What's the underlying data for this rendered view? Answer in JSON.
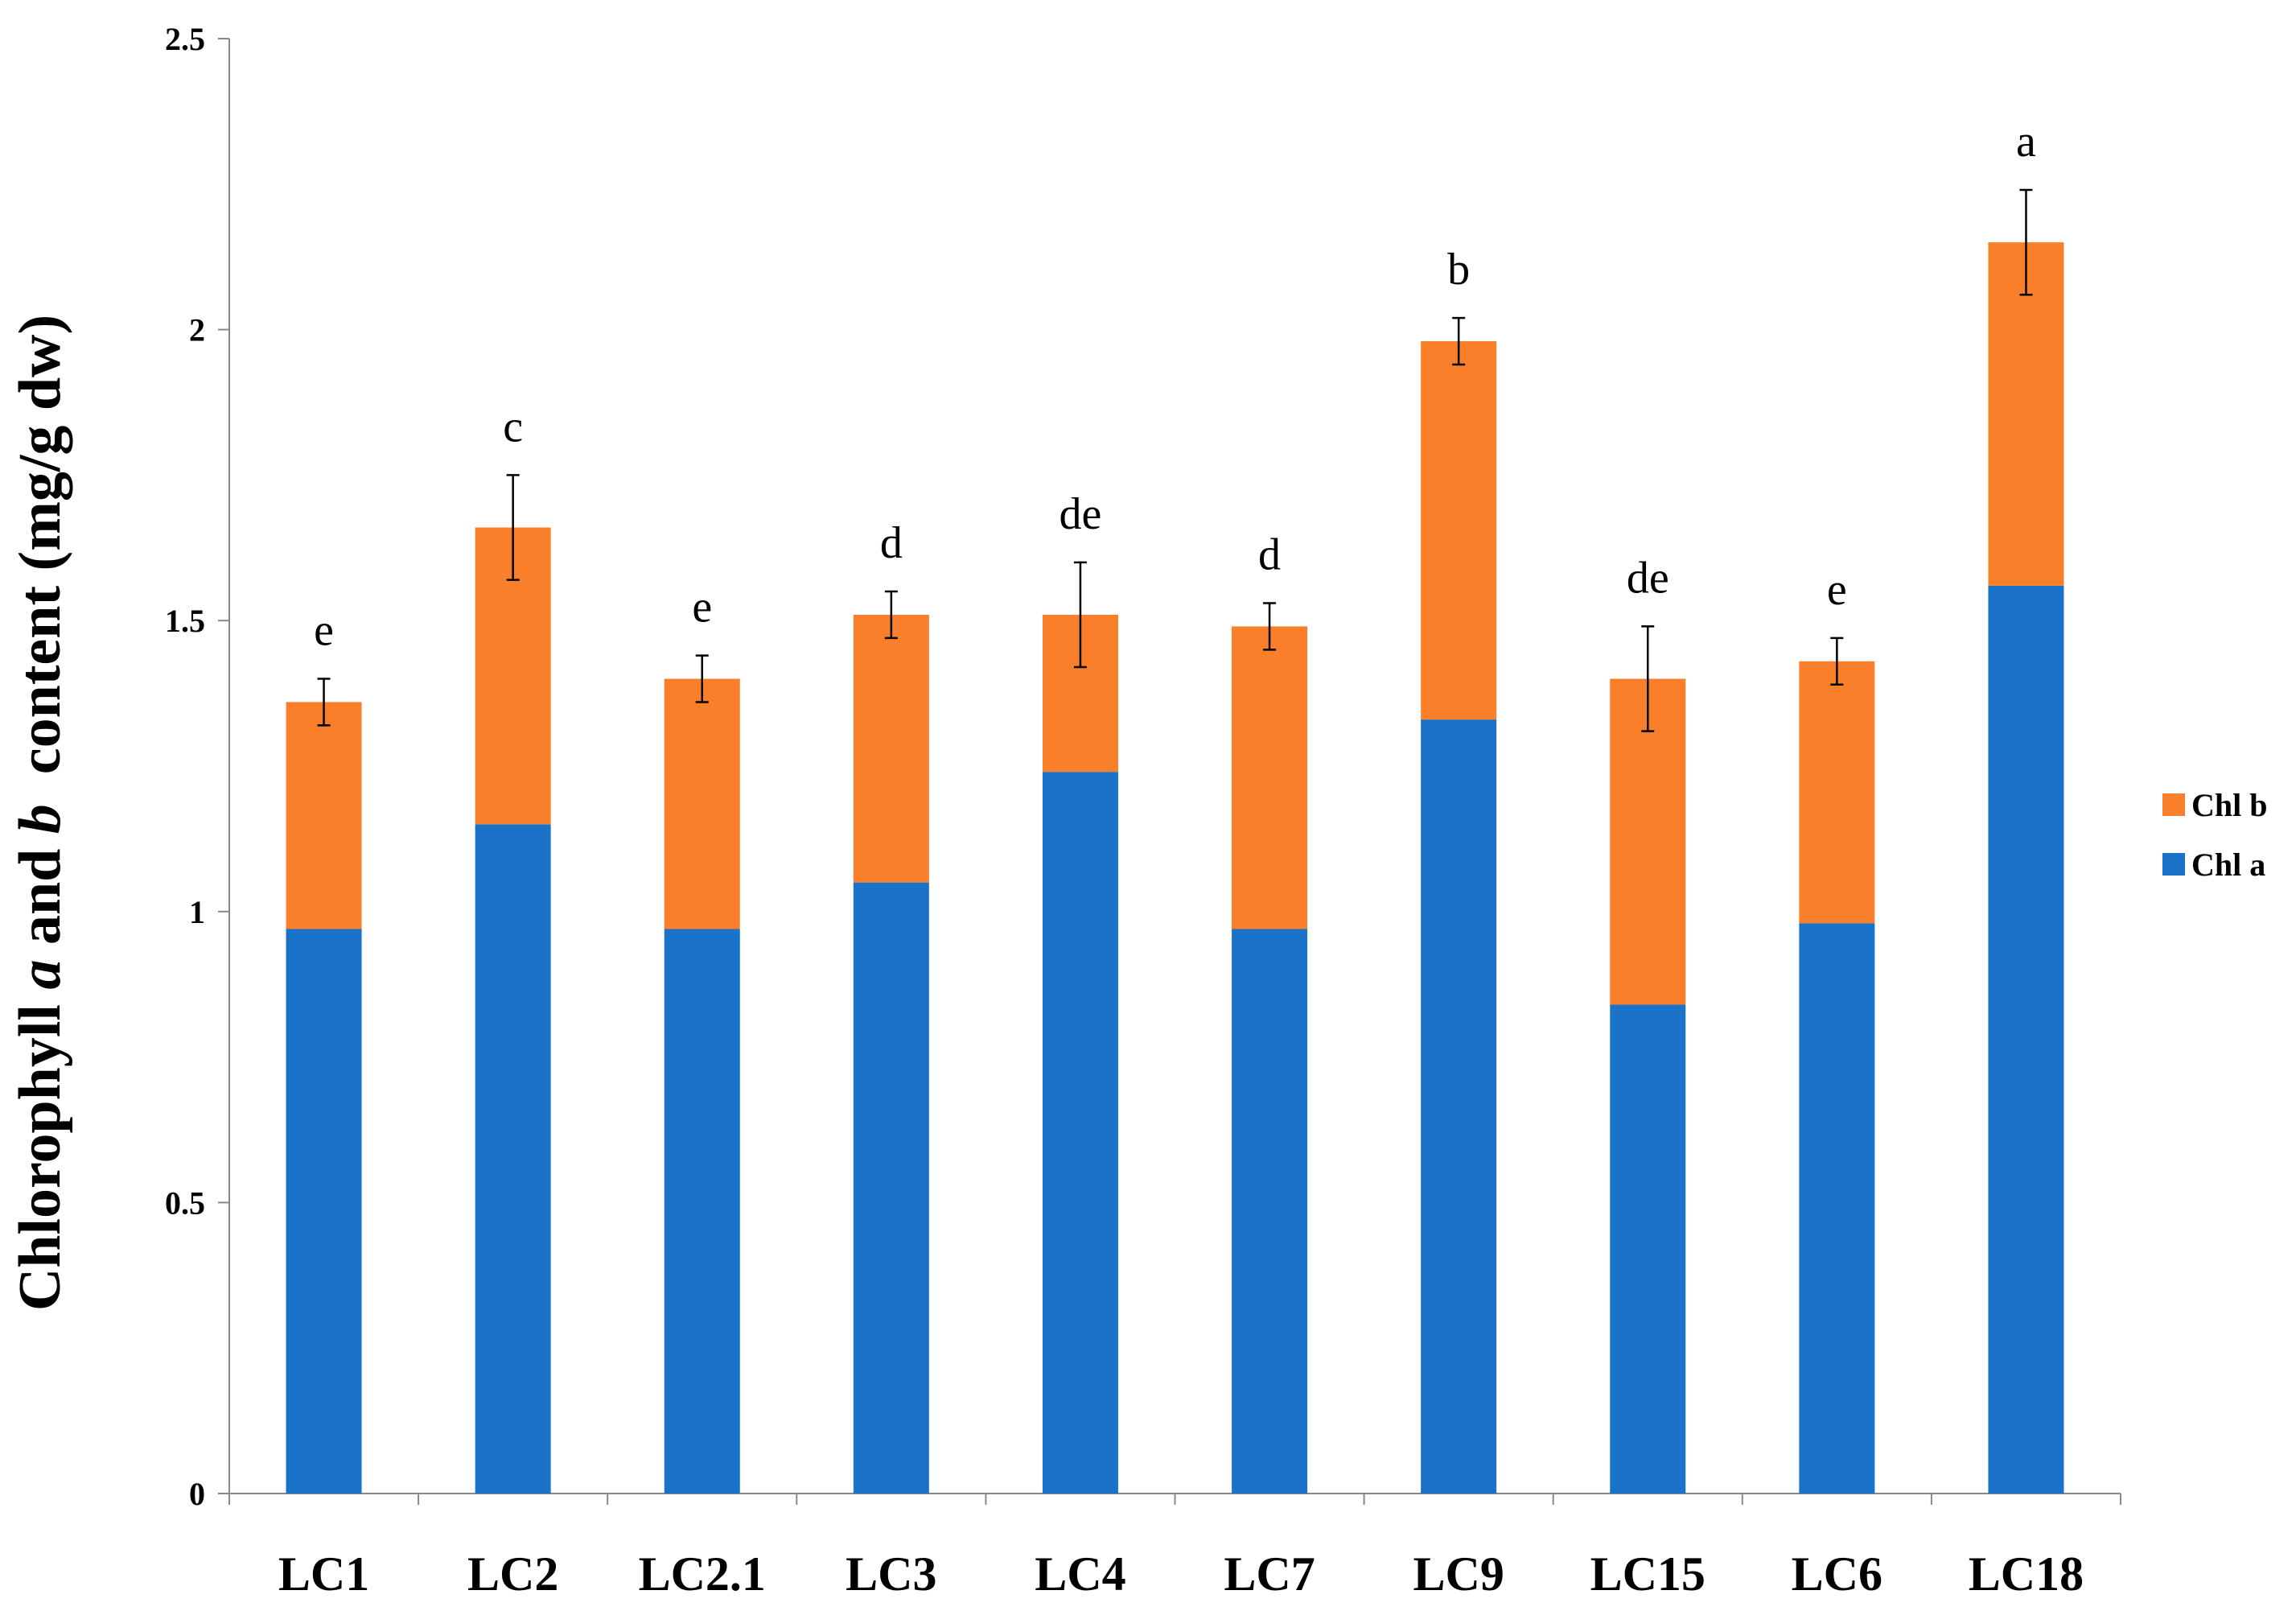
{
  "chart_data": {
    "type": "bar",
    "stacked": true,
    "title": "",
    "xlabel": "",
    "ylabel_parts": [
      {
        "text": "Chlorophyll ",
        "italic": false
      },
      {
        "text": "a",
        "italic": true
      },
      {
        "text": " and ",
        "italic": false
      },
      {
        "text": "b",
        "italic": true
      },
      {
        "text": "  content (mg/g dw)",
        "italic": false
      }
    ],
    "ylim": [
      0,
      2.5
    ],
    "yticks": [
      "0",
      "0.5",
      "1",
      "1.5",
      "2",
      "2.5"
    ],
    "ytick_values": [
      0,
      0.5,
      1,
      1.5,
      2,
      2.5
    ],
    "categories": [
      "LC1",
      "LC2",
      "LC2.1",
      "LC3",
      "LC4",
      "LC7",
      "LC9",
      "LC15",
      "LC6",
      "LC18"
    ],
    "series": [
      {
        "name": "Chl a",
        "color": "#1a73c8",
        "values": [
          0.97,
          1.15,
          0.97,
          1.05,
          1.24,
          0.97,
          1.33,
          0.84,
          0.98,
          1.56
        ]
      },
      {
        "name": "Chl b",
        "color": "#f97f2a",
        "values": [
          0.39,
          0.51,
          0.43,
          0.46,
          0.27,
          0.52,
          0.65,
          0.56,
          0.45,
          0.59
        ]
      }
    ],
    "totals": [
      1.36,
      1.66,
      1.4,
      1.51,
      1.51,
      1.49,
      1.98,
      1.4,
      1.43,
      2.15
    ],
    "error_bars": [
      0.04,
      0.09,
      0.04,
      0.04,
      0.09,
      0.04,
      0.04,
      0.09,
      0.04,
      0.09
    ],
    "significance_letters": [
      "e",
      "c",
      "e",
      "d",
      "de",
      "d",
      "b",
      "de",
      "e",
      "a"
    ],
    "legend": {
      "position": "right",
      "entries": [
        {
          "label": "Chl b",
          "color": "#f97f2a"
        },
        {
          "label": "Chl a",
          "color": "#1a73c8"
        }
      ]
    }
  }
}
